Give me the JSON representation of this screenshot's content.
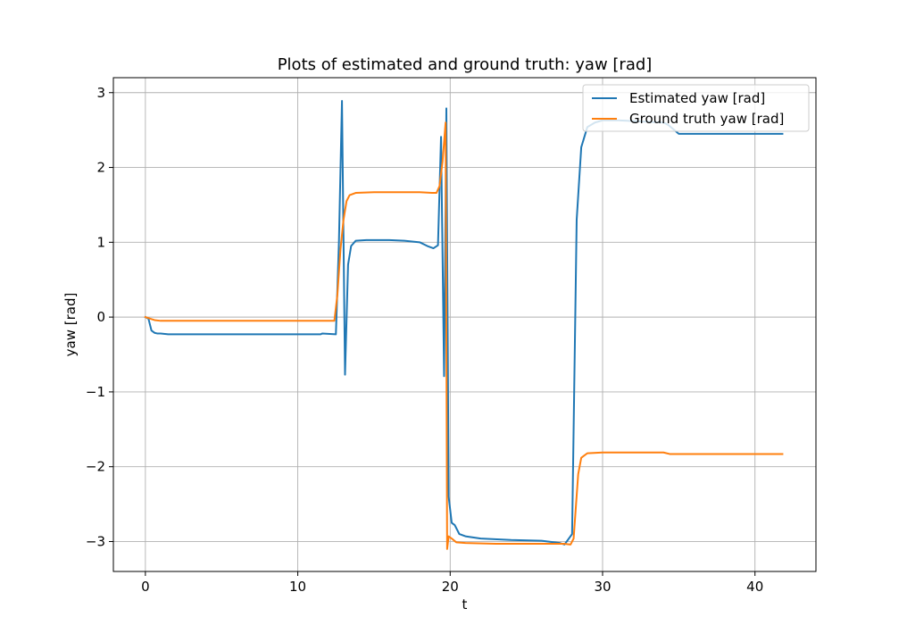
{
  "chart_data": {
    "type": "line",
    "title": "Plots of estimated and ground truth: yaw [rad]",
    "xlabel": "t",
    "ylabel": "yaw [rad]",
    "xlim": [
      -2.1,
      44
    ],
    "ylim": [
      -3.4,
      3.2
    ],
    "xticks": [
      0,
      10,
      20,
      30,
      40
    ],
    "yticks": [
      3,
      2,
      1,
      0,
      -1,
      -2,
      -3
    ],
    "xtick_labels": [
      "0",
      "10",
      "20",
      "30",
      "40"
    ],
    "ytick_labels": [
      "3",
      "2",
      "1",
      "0",
      "−1",
      "−2",
      "−3"
    ],
    "grid": true,
    "legend_position": "top-right",
    "series": [
      {
        "name": "Estimated yaw [rad]",
        "color": "#1f77b4",
        "x": [
          0,
          0.2,
          0.4,
          0.6,
          0.8,
          1.0,
          1.5,
          2,
          5,
          8,
          10,
          11.5,
          11.6,
          12.5,
          12.7,
          12.9,
          13.1,
          13.3,
          13.5,
          13.8,
          14.5,
          16,
          17,
          18,
          18.5,
          18.9,
          19.2,
          19.4,
          19.6,
          19.7,
          19.75,
          19.9,
          20.1,
          20.3,
          20.6,
          21,
          22,
          24,
          26,
          27.2,
          27.5,
          28,
          28.3,
          28.6,
          29,
          29.5,
          30,
          31,
          34,
          34.3,
          35,
          41.8
        ],
        "y": [
          0,
          -0.02,
          -0.18,
          -0.21,
          -0.22,
          -0.22,
          -0.23,
          -0.23,
          -0.23,
          -0.23,
          -0.23,
          -0.23,
          -0.22,
          -0.23,
          1.0,
          2.89,
          -0.77,
          0.7,
          0.95,
          1.02,
          1.03,
          1.03,
          1.02,
          1.0,
          0.95,
          0.92,
          0.96,
          2.41,
          -0.79,
          1.5,
          2.79,
          -2.4,
          -2.75,
          -2.78,
          -2.9,
          -2.93,
          -2.96,
          -2.98,
          -2.99,
          -3.02,
          -3.04,
          -2.9,
          1.3,
          2.27,
          2.54,
          2.6,
          2.63,
          2.63,
          2.6,
          2.57,
          2.45,
          2.45
        ]
      },
      {
        "name": "Ground truth yaw [rad]",
        "color": "#ff7f0e",
        "x": [
          0,
          0.3,
          0.6,
          1.0,
          2,
          5,
          10,
          12.4,
          12.6,
          12.8,
          13.0,
          13.2,
          13.4,
          13.8,
          15,
          18,
          18.8,
          19.1,
          19.3,
          19.5,
          19.7,
          19.8,
          19.9,
          20.1,
          20.4,
          21,
          23,
          26,
          27.5,
          27.9,
          28.1,
          28.4,
          28.6,
          29,
          30,
          32,
          34,
          34.4,
          36,
          38,
          41.8
        ],
        "y": [
          0,
          -0.02,
          -0.04,
          -0.05,
          -0.05,
          -0.05,
          -0.05,
          -0.05,
          0.3,
          0.9,
          1.3,
          1.55,
          1.63,
          1.66,
          1.67,
          1.67,
          1.66,
          1.66,
          1.75,
          2.08,
          2.6,
          -3.1,
          -2.93,
          -2.96,
          -3.01,
          -3.02,
          -3.03,
          -3.03,
          -3.03,
          -3.04,
          -2.96,
          -2.1,
          -1.88,
          -1.82,
          -1.81,
          -1.81,
          -1.81,
          -1.83,
          -1.83,
          -1.83,
          -1.83
        ]
      }
    ]
  }
}
